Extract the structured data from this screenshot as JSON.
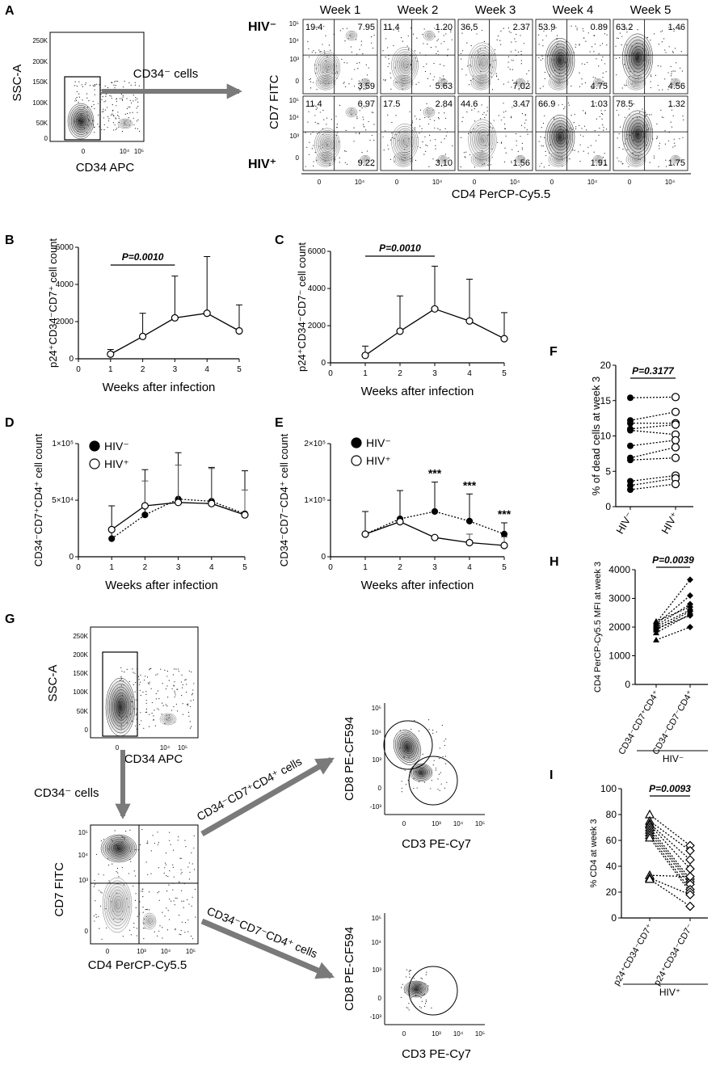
{
  "panels": {
    "A": {
      "letter": "A",
      "gate": {
        "y_label": "SSC-A",
        "x_label": "CD34 APC",
        "y_ticks": [
          "250K",
          "200K",
          "150K",
          "100K",
          "50K",
          "0"
        ],
        "x_ticks": [
          "0",
          "10⁴",
          "10⁵"
        ]
      },
      "arrow_label": "CD34⁻ cells",
      "weeks": [
        "Week 1",
        "Week 2",
        "Week 3",
        "Week 4",
        "Week 5"
      ],
      "row_labels": [
        "HIV⁻",
        "HIV⁺"
      ],
      "y_label": "CD7 FITC",
      "x_label": "CD4 PerCP-Cy5.5",
      "y_ticks_top": [
        "10⁵",
        "10⁴",
        "10³",
        "0"
      ],
      "y_ticks_bottom": [
        "10⁵",
        "10⁴",
        "10³",
        "0"
      ],
      "x_ticks": [
        "0",
        "10⁴"
      ],
      "quadrants": [
        [
          {
            "ul": "19.4",
            "ur": "7.95",
            "lr": "3.59"
          },
          {
            "ul": "11.4",
            "ur": "1.20",
            "lr": "5.63"
          },
          {
            "ul": "36.5",
            "ur": "2.37",
            "lr": "7.02"
          },
          {
            "ul": "53.9",
            "ur": "0.89",
            "lr": "4.75"
          },
          {
            "ul": "63.2",
            "ur": "1.46",
            "lr": "4.56"
          }
        ],
        [
          {
            "ul": "11.4",
            "ur": "6.97",
            "lr": "9.22"
          },
          {
            "ul": "17.5",
            "ur": "2.84",
            "lr": "3.10"
          },
          {
            "ul": "44.6",
            "ur": "3.47",
            "lr": "1.56"
          },
          {
            "ul": "66.9",
            "ur": "1.03",
            "lr": "1.91"
          },
          {
            "ul": "78.5",
            "ur": "1.32",
            "lr": "1.75"
          }
        ]
      ]
    },
    "G": {
      "letter": "G",
      "gate": {
        "y_label": "SSC-A",
        "x_label": "CD34 APC",
        "y_ticks": [
          "250K",
          "200K",
          "150K",
          "100K",
          "50K",
          "0"
        ],
        "x_ticks": [
          "0",
          "10⁴",
          "10⁵"
        ]
      },
      "arrow_label": "CD34⁻ cells",
      "quad": {
        "y_label": "CD7 FITC",
        "x_label": "CD4 PerCP-Cy5.5",
        "y_ticks": [
          "10⁵",
          "10⁴",
          "10³",
          "0"
        ],
        "x_ticks": [
          "0",
          "10³",
          "10⁴",
          "10⁵"
        ]
      },
      "branch_top": "CD34⁻CD7⁺CD4⁺ cells",
      "branch_bottom": "CD34⁻CD7⁻CD4⁺ cells",
      "cd8_y_label": "CD8 PE-CF594",
      "cd3_x_label": "CD3 PE-Cy7",
      "cd_y_ticks": [
        "10⁵",
        "10⁴",
        "10³",
        "0",
        "-10³"
      ],
      "cd_x_ticks": [
        "0",
        "10³",
        "10⁴",
        "10⁵"
      ]
    }
  },
  "chart_data": [
    {
      "panel": "B",
      "type": "line",
      "x": [
        1,
        2,
        3,
        4,
        5
      ],
      "series": [
        {
          "name": "p24⁺CD34⁻CD7⁺",
          "values": [
            250,
            1200,
            2200,
            2450,
            1500
          ],
          "errors": [
            250,
            1250,
            2250,
            3050,
            1400
          ]
        }
      ],
      "title": "",
      "xlabel": "Weeks after infection",
      "ylabel": "p24⁺CD34⁻CD7⁺ cell count",
      "xlim": [
        0,
        5
      ],
      "ylim": [
        0,
        6000
      ],
      "xticks": [
        "0",
        "1",
        "2",
        "3",
        "4",
        "5"
      ],
      "yticks": [
        "0",
        "2000",
        "4000",
        "6000"
      ],
      "annotation": {
        "text": "P=0.0010",
        "from": 1,
        "to": 3
      }
    },
    {
      "panel": "C",
      "type": "line",
      "x": [
        1,
        2,
        3,
        4,
        5
      ],
      "series": [
        {
          "name": "p24⁺CD34⁻CD7⁻",
          "values": [
            400,
            1700,
            2900,
            2250,
            1300
          ],
          "errors": [
            500,
            1900,
            2300,
            2250,
            1400
          ]
        }
      ],
      "title": "",
      "xlabel": "Weeks after infection",
      "ylabel": "p24⁺CD34⁻CD7⁻ cell count",
      "xlim": [
        0,
        5
      ],
      "ylim": [
        0,
        6000
      ],
      "xticks": [
        "0",
        "1",
        "2",
        "3",
        "4",
        "5"
      ],
      "yticks": [
        "0",
        "2000",
        "4000",
        "6000"
      ],
      "annotation": {
        "text": "P=0.0010",
        "from": 1,
        "to": 3
      }
    },
    {
      "panel": "D",
      "type": "line",
      "x": [
        1,
        2,
        3,
        4,
        5
      ],
      "series": [
        {
          "name": "HIV⁻",
          "values": [
            16000,
            37000,
            51000,
            49000,
            38000
          ],
          "errors": [
            29000,
            40000,
            41000,
            30000,
            38000
          ]
        },
        {
          "name": "HIV⁺",
          "values": [
            24000,
            45000,
            48000,
            47000,
            37000
          ],
          "errors": [
            0,
            22000,
            33000,
            31000,
            22000
          ]
        }
      ],
      "title": "",
      "xlabel": "Weeks after infection",
      "ylabel": "CD34⁻CD7⁺CD4⁺ cell count",
      "xlim": [
        0,
        5
      ],
      "ylim": [
        0,
        100000
      ],
      "xticks": [
        "0",
        "1",
        "2",
        "3",
        "4",
        "5"
      ],
      "yticks": [
        "0",
        "5×10⁴",
        "1×10⁵"
      ],
      "legend": [
        "HIV⁻",
        "HIV⁺"
      ]
    },
    {
      "panel": "E",
      "type": "line",
      "x": [
        1,
        2,
        3,
        4,
        5
      ],
      "series": [
        {
          "name": "HIV⁻",
          "values": [
            40000,
            67000,
            80000,
            63000,
            40000
          ],
          "errors": [
            40000,
            50000,
            52000,
            48000,
            20000
          ]
        },
        {
          "name": "HIV⁺",
          "values": [
            40000,
            62000,
            34000,
            25000,
            20000
          ],
          "errors": [
            0,
            0,
            0,
            15000,
            15000
          ]
        }
      ],
      "title": "",
      "xlabel": "Weeks after infection",
      "ylabel": "CD34⁻CD7⁻CD4⁺ cell count",
      "xlim": [
        0,
        5
      ],
      "ylim": [
        0,
        200000
      ],
      "xticks": [
        "0",
        "1",
        "2",
        "3",
        "4",
        "5"
      ],
      "yticks": [
        "0",
        "1×10⁵",
        "2×10⁵"
      ],
      "legend": [
        "HIV⁻",
        "HIV⁺"
      ],
      "significance": [
        {
          "x": 3,
          "text": "***"
        },
        {
          "x": 4,
          "text": "***"
        },
        {
          "x": 5,
          "text": "***"
        }
      ]
    },
    {
      "panel": "F",
      "type": "scatter",
      "categories": [
        "HIV⁻",
        "HIV⁺"
      ],
      "pairs": [
        [
          15.4,
          15.5
        ],
        [
          12.2,
          13.4
        ],
        [
          11.8,
          11.8
        ],
        [
          11.0,
          11.6
        ],
        [
          10.8,
          10.2
        ],
        [
          8.6,
          9.4
        ],
        [
          6.9,
          8.4
        ],
        [
          6.6,
          6.9
        ],
        [
          3.6,
          4.4
        ],
        [
          3.0,
          4.0
        ],
        [
          2.4,
          3.2
        ]
      ],
      "xlabel": "",
      "ylabel": "% of dead cells at week 3",
      "ylim": [
        0,
        20
      ],
      "yticks": [
        "0",
        "5",
        "10",
        "15",
        "20"
      ],
      "annotation": {
        "text": "P=0.3177"
      }
    },
    {
      "panel": "H",
      "type": "scatter",
      "categories": [
        "CD34⁻CD7⁺CD4⁺",
        "CD34⁻CD7⁻CD4⁺"
      ],
      "group_label": "HIV⁻",
      "pairs": [
        [
          1550,
          2000
        ],
        [
          1800,
          2450
        ],
        [
          1950,
          2400
        ],
        [
          2000,
          2600
        ],
        [
          2050,
          2800
        ],
        [
          2100,
          3100
        ],
        [
          2150,
          3650
        ],
        [
          2200,
          2700
        ],
        [
          1900,
          2550
        ]
      ],
      "ylabel": "CD4 PerCP-Cy5.5  MFI at week 3",
      "ylim": [
        0,
        4000
      ],
      "yticks": [
        "0",
        "1000",
        "2000",
        "3000",
        "4000"
      ],
      "annotation": {
        "text": "P=0.0039"
      }
    },
    {
      "panel": "I",
      "type": "scatter",
      "categories": [
        "p24⁺CD34⁻CD7⁺",
        "p24⁺CD34⁻CD7⁻"
      ],
      "group_label": "HIV⁺",
      "pairs": [
        [
          80,
          56
        ],
        [
          75,
          52
        ],
        [
          73,
          45
        ],
        [
          72,
          38
        ],
        [
          70,
          30
        ],
        [
          68,
          28
        ],
        [
          66,
          26
        ],
        [
          64,
          22
        ],
        [
          62,
          20
        ],
        [
          33,
          32
        ],
        [
          31,
          18
        ],
        [
          30,
          9
        ]
      ],
      "ylabel": "% CD4 at week 3",
      "ylim": [
        0,
        100
      ],
      "yticks": [
        "0",
        "20",
        "40",
        "60",
        "80",
        "100"
      ],
      "annotation": {
        "text": "P=0.0093"
      }
    }
  ]
}
